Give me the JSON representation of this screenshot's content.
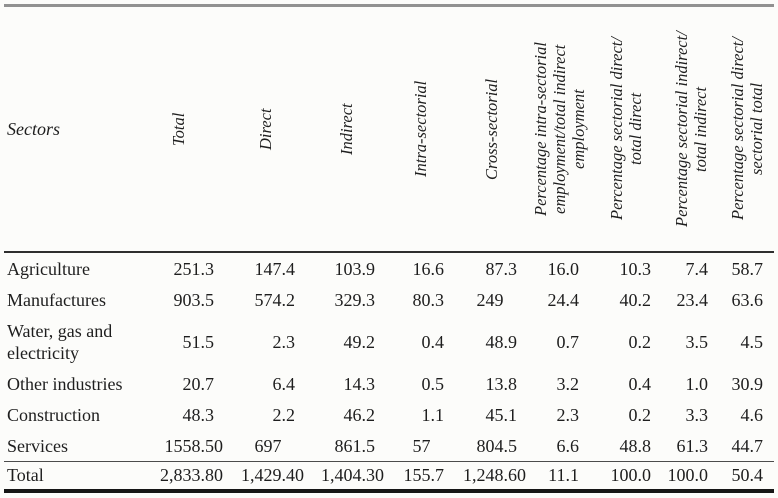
{
  "table": {
    "sectors_header": "Sectors",
    "columns": [
      "Total",
      "Direct",
      "Indirect",
      "Intra-sectorial",
      "Cross-sectorial",
      "Percentage intra-sectorial\nemployment/total indirect\nemployment",
      "Percentage sectorial direct/\ntotal direct",
      "Percentage sectorial indirect/\ntotal indirect",
      "Percentage sectorial direct/\nsectorial total"
    ],
    "rows": [
      {
        "sector": "Agriculture",
        "values": [
          "251.3",
          "147.4",
          "103.9",
          "16.6",
          "87.3",
          "16.0",
          "10.3",
          "7.4",
          "58.7"
        ]
      },
      {
        "sector": "Manufactures",
        "values": [
          "903.5",
          "574.2",
          "329.3",
          "80.3",
          "249",
          "24.4",
          "40.2",
          "23.4",
          "63.6"
        ]
      },
      {
        "sector": "Water, gas and electricity",
        "values": [
          "51.5",
          "2.3",
          "49.2",
          "0.4",
          "48.9",
          "0.7",
          "0.2",
          "3.5",
          "4.5"
        ]
      },
      {
        "sector": "Other industries",
        "values": [
          "20.7",
          "6.4",
          "14.3",
          "0.5",
          "13.8",
          "3.2",
          "0.4",
          "1.0",
          "30.9"
        ]
      },
      {
        "sector": "Construction",
        "values": [
          "48.3",
          "2.2",
          "46.2",
          "1.1",
          "45.1",
          "2.3",
          "0.2",
          "3.3",
          "4.6"
        ]
      },
      {
        "sector": "Services",
        "values": [
          "1558.50",
          "697",
          "861.5",
          "57",
          "804.5",
          "6.6",
          "48.8",
          "61.3",
          "44.7"
        ]
      }
    ],
    "total_row": {
      "sector": "Total",
      "values": [
        "2,833.80",
        "1,429.40",
        "1,404.30",
        "155.7",
        "1,248.60",
        "11.1",
        "100.0",
        "100.0",
        "50.4"
      ]
    },
    "colors": {
      "ink": "#1e1e1e",
      "top_rule": "#919191",
      "bottom_rule": "#161616",
      "background": "#fcfcfa"
    }
  }
}
